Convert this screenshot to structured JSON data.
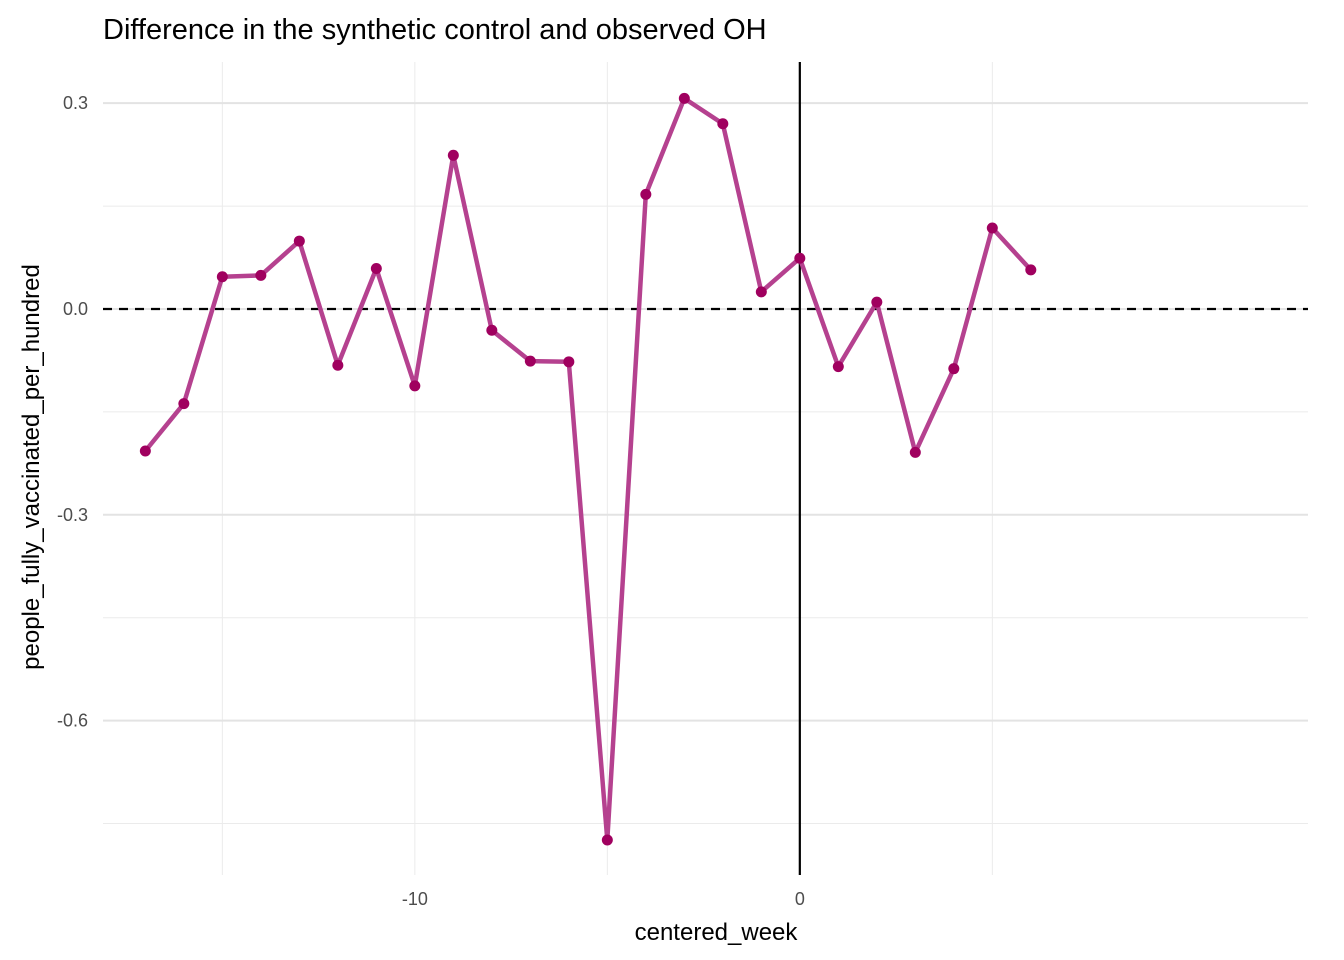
{
  "chart_data": {
    "type": "line",
    "title": "Difference in the synthetic control and observed OH",
    "xlabel": "centered_week",
    "ylabel": "people_fully_vaccinated_per_hundred",
    "xlim": [
      -18.1,
      13.2
    ],
    "ylim": [
      -0.825,
      0.36
    ],
    "x_ticks": [
      {
        "value": -10,
        "label": "-10"
      },
      {
        "value": 0,
        "label": "0"
      }
    ],
    "x_minor_gridlines": [
      -15,
      -10,
      -5,
      0,
      5
    ],
    "y_ticks": [
      {
        "value": 0.3,
        "label": "0.3"
      },
      {
        "value": 0.0,
        "label": "0.0"
      },
      {
        "value": -0.3,
        "label": "-0.3"
      },
      {
        "value": -0.6,
        "label": "-0.6"
      }
    ],
    "y_minor_gridlines": [
      0.15,
      -0.15,
      -0.45,
      -0.75
    ],
    "grid": true,
    "reference_lines": [
      {
        "orientation": "horizontal",
        "value": 0,
        "style": "dashed",
        "color": "#000000"
      },
      {
        "orientation": "vertical",
        "value": 0,
        "style": "solid",
        "color": "#000000"
      }
    ],
    "series": [
      {
        "color": "#b5418f",
        "point_color": "#a0005f",
        "x": [
          -17,
          -16,
          -15,
          -14,
          -13,
          -12,
          -11,
          -10,
          -9,
          -8,
          -7,
          -6,
          -5,
          -4,
          -3,
          -2,
          -1,
          0,
          1,
          2,
          3,
          4,
          5,
          6
        ],
        "y": [
          -0.207,
          -0.138,
          0.047,
          0.049,
          0.099,
          -0.082,
          0.059,
          -0.112,
          0.224,
          -0.031,
          -0.076,
          -0.077,
          -0.774,
          0.167,
          0.307,
          0.27,
          0.025,
          0.074,
          -0.084,
          0.01,
          -0.209,
          -0.087,
          0.118,
          0.057
        ]
      }
    ]
  }
}
